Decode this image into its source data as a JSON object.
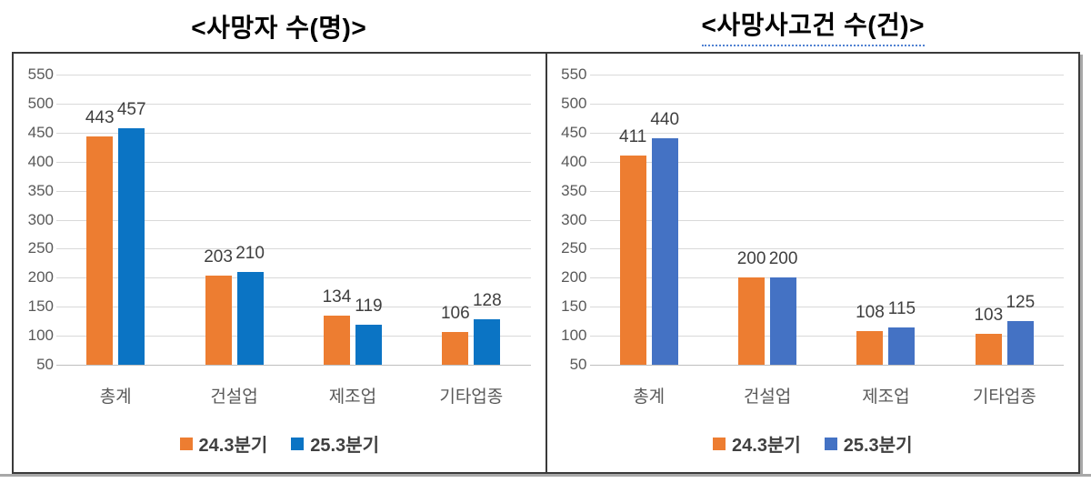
{
  "chart_data": [
    {
      "type": "bar",
      "title": "<사망자 수(명)>",
      "title_underline": false,
      "categories": [
        "총계",
        "건설업",
        "제조업",
        "기타업종"
      ],
      "series": [
        {
          "name": "24.3분기",
          "color": "#ED7D31",
          "values": [
            443,
            203,
            134,
            106
          ]
        },
        {
          "name": "25.3분기",
          "color": "#0B74C4",
          "values": [
            457,
            210,
            119,
            128
          ]
        }
      ],
      "ylim": [
        50,
        550
      ],
      "ytick_step": 50,
      "grid": true,
      "legend_position": "bottom"
    },
    {
      "type": "bar",
      "title": "<사망사고건 수(건)>",
      "title_underline": true,
      "categories": [
        "총계",
        "건설업",
        "제조업",
        "기타업종"
      ],
      "series": [
        {
          "name": "24.3분기",
          "color": "#ED7D31",
          "values": [
            411,
            200,
            108,
            103
          ]
        },
        {
          "name": "25.3분기",
          "color": "#4472C4",
          "values": [
            440,
            200,
            115,
            125
          ]
        }
      ],
      "ylim": [
        50,
        550
      ],
      "ytick_step": 50,
      "grid": true,
      "legend_position": "bottom"
    }
  ],
  "colors": {
    "series_orange": "#ED7D31",
    "series_blue_left": "#0B74C4",
    "series_blue_right": "#4472C4",
    "title_underline": "#4f81d2"
  }
}
